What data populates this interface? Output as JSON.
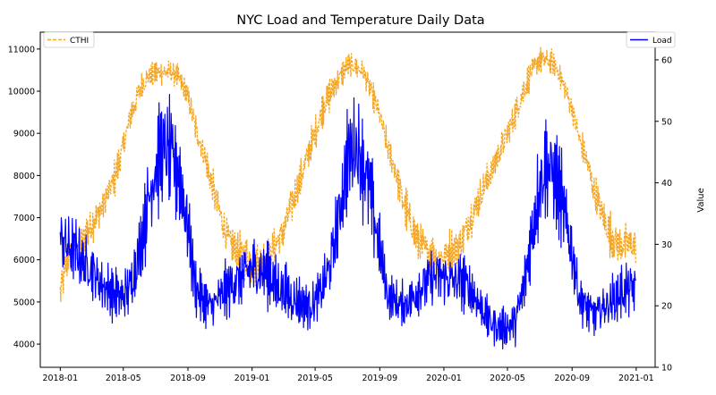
{
  "chart_data": {
    "type": "line",
    "title": "NYC Load and Temperature Daily Data",
    "xlabel": "",
    "ylabel_left": "",
    "ylabel_right": "Value",
    "x_ticks": [
      "2018-01",
      "2018-05",
      "2018-09",
      "2019-01",
      "2019-05",
      "2019-09",
      "2020-01",
      "2020-05",
      "2020-09",
      "2021-01"
    ],
    "y_left_ticks": [
      4000,
      5000,
      6000,
      7000,
      8000,
      9000,
      10000,
      11000
    ],
    "y_right_ticks": [
      10,
      20,
      30,
      40,
      50,
      60
    ],
    "ylim_left": [
      3450,
      11400
    ],
    "ylim_right": [
      10,
      64.5
    ],
    "xlim": [
      "2017-11-24",
      "2021-02-06"
    ],
    "grid": false,
    "legend_left": {
      "position": "top-left",
      "entries": [
        "CTHI"
      ]
    },
    "legend_right": {
      "position": "top-right",
      "entries": [
        "Load"
      ]
    },
    "colors": {
      "Load": "#0000ff",
      "CTHI": "#f5a623"
    },
    "series": [
      {
        "name": "Load",
        "axis": "left",
        "style": "solid",
        "x": [
          "2018-01-01",
          "2018-01-15",
          "2018-02-01",
          "2018-02-15",
          "2018-03-01",
          "2018-03-15",
          "2018-04-01",
          "2018-04-15",
          "2018-05-01",
          "2018-05-15",
          "2018-06-01",
          "2018-06-15",
          "2018-07-01",
          "2018-07-15",
          "2018-08-01",
          "2018-08-15",
          "2018-09-01",
          "2018-09-15",
          "2018-10-01",
          "2018-10-15",
          "2018-11-01",
          "2018-11-15",
          "2018-12-01",
          "2018-12-15",
          "2019-01-01",
          "2019-01-15",
          "2019-02-01",
          "2019-02-15",
          "2019-03-01",
          "2019-03-15",
          "2019-04-01",
          "2019-04-15",
          "2019-05-01",
          "2019-05-15",
          "2019-06-01",
          "2019-06-15",
          "2019-07-01",
          "2019-07-15",
          "2019-08-01",
          "2019-08-15",
          "2019-09-01",
          "2019-09-15",
          "2019-10-01",
          "2019-10-15",
          "2019-11-01",
          "2019-11-15",
          "2019-12-01",
          "2019-12-15",
          "2020-01-01",
          "2020-01-15",
          "2020-02-01",
          "2020-02-15",
          "2020-03-01",
          "2020-03-15",
          "2020-04-01",
          "2020-04-15",
          "2020-05-01",
          "2020-05-15",
          "2020-06-01",
          "2020-06-15",
          "2020-07-01",
          "2020-07-15",
          "2020-08-01",
          "2020-08-15",
          "2020-09-01",
          "2020-09-15",
          "2020-10-01",
          "2020-10-15",
          "2020-11-01",
          "2020-11-15",
          "2020-12-01",
          "2020-12-15",
          "2020-12-31"
        ],
        "y": [
          6500,
          6300,
          6200,
          5900,
          5800,
          5500,
          5300,
          5200,
          5100,
          5400,
          6200,
          7200,
          8200,
          8600,
          8400,
          8000,
          6800,
          5400,
          5000,
          4900,
          5100,
          5300,
          5500,
          5600,
          5800,
          5700,
          5700,
          5400,
          5300,
          5100,
          5000,
          4900,
          5000,
          5300,
          6000,
          7000,
          8300,
          8800,
          8200,
          7500,
          6200,
          5200,
          5000,
          4900,
          5100,
          5300,
          5500,
          5600,
          5600,
          5500,
          5500,
          5400,
          5100,
          4800,
          4500,
          4400,
          4400,
          4500,
          5300,
          6500,
          7800,
          8300,
          7900,
          7200,
          6200,
          5100,
          4800,
          4700,
          4900,
          5000,
          5200,
          5300,
          5300
        ],
        "amplitude": [
          1400,
          1300,
          1200,
          1100,
          1000,
          900,
          900,
          900,
          900,
          1000,
          1200,
          1500,
          1800,
          1900,
          1900,
          1800,
          1500,
          1000,
          800,
          800,
          900,
          1000,
          1100,
          1200,
          1200,
          1200,
          1100,
          1100,
          1000,
          900,
          900,
          900,
          900,
          1000,
          1200,
          1500,
          1800,
          1900,
          1800,
          1600,
          1300,
          900,
          800,
          800,
          900,
          1000,
          1100,
          1100,
          1100,
          1100,
          1100,
          1000,
          900,
          800,
          700,
          700,
          700,
          800,
          1100,
          1400,
          1700,
          1800,
          1700,
          1500,
          1200,
          900,
          800,
          800,
          800,
          900,
          1000,
          1000,
          900
        ]
      },
      {
        "name": "CTHI",
        "axis": "right",
        "style": "dashed",
        "x": [
          "2018-01-01",
          "2018-01-15",
          "2018-02-01",
          "2018-02-15",
          "2018-03-01",
          "2018-03-15",
          "2018-04-01",
          "2018-04-15",
          "2018-05-01",
          "2018-05-15",
          "2018-06-01",
          "2018-06-15",
          "2018-07-01",
          "2018-07-15",
          "2018-08-01",
          "2018-08-15",
          "2018-09-01",
          "2018-09-15",
          "2018-10-01",
          "2018-10-15",
          "2018-11-01",
          "2018-11-15",
          "2018-12-01",
          "2018-12-15",
          "2019-01-01",
          "2019-01-15",
          "2019-02-01",
          "2019-02-15",
          "2019-03-01",
          "2019-03-15",
          "2019-04-01",
          "2019-04-15",
          "2019-05-01",
          "2019-05-15",
          "2019-06-01",
          "2019-06-15",
          "2019-07-01",
          "2019-07-15",
          "2019-08-01",
          "2019-08-15",
          "2019-09-01",
          "2019-09-15",
          "2019-10-01",
          "2019-10-15",
          "2019-11-01",
          "2019-11-15",
          "2019-12-01",
          "2019-12-15",
          "2020-01-01",
          "2020-01-15",
          "2020-02-01",
          "2020-02-15",
          "2020-03-01",
          "2020-03-15",
          "2020-04-01",
          "2020-04-15",
          "2020-05-01",
          "2020-05-15",
          "2020-06-01",
          "2020-06-15",
          "2020-07-01",
          "2020-07-15",
          "2020-08-01",
          "2020-08-15",
          "2020-09-01",
          "2020-09-15",
          "2020-10-01",
          "2020-10-15",
          "2020-11-01",
          "2020-11-15",
          "2020-12-01",
          "2020-12-15",
          "2020-12-31"
        ],
        "y": [
          22,
          28,
          30,
          31,
          33,
          35,
          38,
          41,
          46,
          51,
          55,
          57,
          58,
          58,
          58,
          57,
          54,
          49,
          45,
          40,
          35,
          31,
          29,
          28,
          27,
          27,
          28,
          30,
          32,
          36,
          40,
          44,
          48,
          52,
          55,
          57,
          59,
          59,
          58,
          55,
          51,
          46,
          42,
          37,
          33,
          30,
          29,
          28,
          28,
          29,
          30,
          33,
          36,
          39,
          42,
          45,
          48,
          51,
          55,
          58,
          60,
          60,
          59,
          56,
          52,
          47,
          43,
          38,
          34,
          31,
          30,
          30,
          30
        ],
        "amplitude": [
          6,
          5,
          5,
          5,
          5,
          4,
          4,
          4,
          4,
          4,
          4,
          3,
          3,
          3,
          3,
          3,
          3,
          4,
          4,
          5,
          5,
          5,
          5,
          6,
          6,
          6,
          5,
          5,
          5,
          5,
          4,
          4,
          4,
          4,
          4,
          3,
          3,
          3,
          3,
          3,
          3,
          4,
          4,
          5,
          5,
          5,
          5,
          5,
          5,
          5,
          5,
          5,
          5,
          5,
          4,
          4,
          4,
          4,
          4,
          3,
          3,
          3,
          3,
          3,
          3,
          4,
          4,
          5,
          5,
          5,
          5,
          5,
          5
        ]
      }
    ]
  }
}
